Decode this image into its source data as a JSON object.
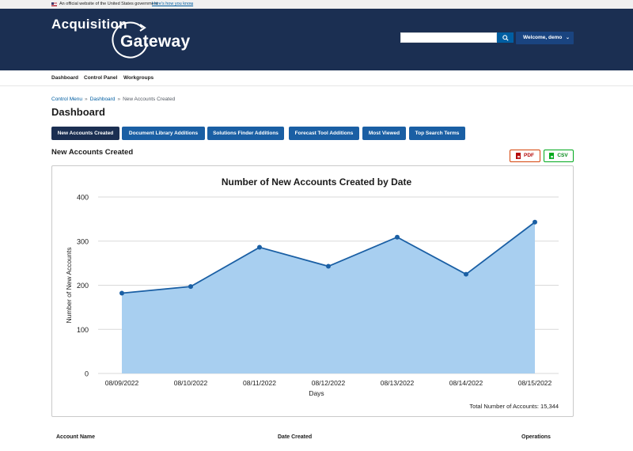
{
  "gov_banner": {
    "official_text": "An official website of the United States government",
    "know_link": "Here's how you know"
  },
  "header": {
    "logo_line1": "Acquisition",
    "logo_line2": "Gateway",
    "search": {
      "value": "",
      "placeholder": ""
    },
    "user_menu_label": "Welcome, demo"
  },
  "subnav": {
    "items": [
      "Dashboard",
      "Control Panel",
      "Workgroups"
    ]
  },
  "breadcrumb": {
    "items": [
      "Control Menu",
      "Dashboard",
      "New Accounts Created"
    ]
  },
  "page": {
    "title": "Dashboard"
  },
  "tabs": [
    {
      "label": "New Accounts Created",
      "active": true
    },
    {
      "label": "Document Library Additions",
      "active": false
    },
    {
      "label": "Solutions Finder Additions",
      "active": false
    },
    {
      "label": "Forecast Tool Additions",
      "active": false
    },
    {
      "label": "Most Viewed",
      "active": false
    },
    {
      "label": "Top Search Terms",
      "active": false
    }
  ],
  "section": {
    "title": "New Accounts Created",
    "pdf_label": "PDF",
    "csv_label": "CSV"
  },
  "chart_data": {
    "type": "area",
    "title": "Number of New Accounts Created by Date",
    "xlabel": "Days",
    "ylabel": "Number of New Accounts",
    "categories": [
      "08/09/2022",
      "08/10/2022",
      "08/11/2022",
      "08/12/2022",
      "08/13/2022",
      "08/14/2022",
      "08/15/2022"
    ],
    "values": [
      182,
      197,
      286,
      243,
      309,
      225,
      343
    ],
    "ylim": [
      0,
      400
    ],
    "yticks": [
      0,
      100,
      200,
      300,
      400
    ],
    "grid": true,
    "colors": {
      "line": "#1a5fa4",
      "fill": "#a8cff0",
      "grid": "#d9d9d9"
    }
  },
  "chart_footer": {
    "total_text": "Total Number of Accounts: 15,344"
  },
  "table": {
    "columns": [
      "Account Name",
      "Date Created",
      "Operations"
    ]
  }
}
